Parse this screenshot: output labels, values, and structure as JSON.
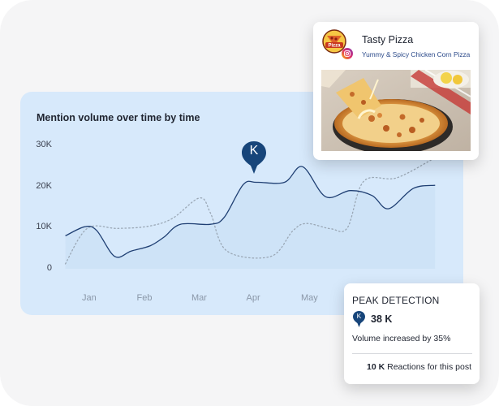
{
  "chart": {
    "title": "Mention volume over time by time",
    "pin_letter": "K",
    "colors": {
      "card_bg": "#d7e9fb",
      "primary_line": "#1f3f73",
      "secondary_line": "#9aa7b5",
      "area_fill": "#c3dbf2",
      "pin": "#17457a"
    }
  },
  "chart_data": {
    "type": "line",
    "title": "Mention volume over time by time",
    "xlabel": "",
    "ylabel": "",
    "categories": [
      "Jan",
      "Feb",
      "Mar",
      "Apr",
      "May"
    ],
    "y_ticks": [
      "0",
      "10K",
      "20K",
      "30K"
    ],
    "ylim": [
      0,
      30000
    ],
    "grid": false,
    "series": [
      {
        "style": "solid",
        "points": [
          [
            -0.45,
            8000
          ],
          [
            -0.1,
            10200
          ],
          [
            0.12,
            9300
          ],
          [
            0.45,
            3000
          ],
          [
            0.75,
            4300
          ],
          [
            1.1,
            5600
          ],
          [
            1.35,
            7700
          ],
          [
            1.65,
            10800
          ],
          [
            2.2,
            10800
          ],
          [
            2.45,
            12500
          ],
          [
            2.8,
            20500
          ],
          [
            3.05,
            21000
          ],
          [
            3.55,
            21000
          ],
          [
            3.88,
            24800
          ],
          [
            4.3,
            17500
          ],
          [
            4.75,
            19000
          ],
          [
            5.15,
            17800
          ],
          [
            5.45,
            14600
          ],
          [
            5.9,
            19500
          ],
          [
            6.3,
            20300
          ]
        ]
      },
      {
        "style": "dotted",
        "points": [
          [
            -0.45,
            1200
          ],
          [
            -0.05,
            9800
          ],
          [
            0.5,
            9800
          ],
          [
            1.05,
            10300
          ],
          [
            1.5,
            12200
          ],
          [
            2.0,
            17200
          ],
          [
            2.2,
            13500
          ],
          [
            2.5,
            4300
          ],
          [
            3.3,
            3000
          ],
          [
            3.7,
            9200
          ],
          [
            3.95,
            11000
          ],
          [
            4.4,
            9700
          ],
          [
            4.7,
            10000
          ],
          [
            5.0,
            21300
          ],
          [
            5.6,
            22100
          ],
          [
            6.3,
            27000
          ]
        ]
      }
    ],
    "annotation": {
      "label": "K",
      "category_index": 3
    }
  },
  "post": {
    "name": "Tasty Pizza",
    "subtitle": "Yummy & Spicy Chicken Corn Pizza",
    "logo_text": "Pizza",
    "logo_icon": "pizza-logo-icon",
    "platform_icon": "instagram-icon"
  },
  "peak": {
    "title": "PEAK DETECTION",
    "pin_letter": "K",
    "value": "38 K",
    "description": "Volume increased by 35%",
    "reactions_count": "10 K",
    "reactions_label": " Reactions for this post"
  }
}
